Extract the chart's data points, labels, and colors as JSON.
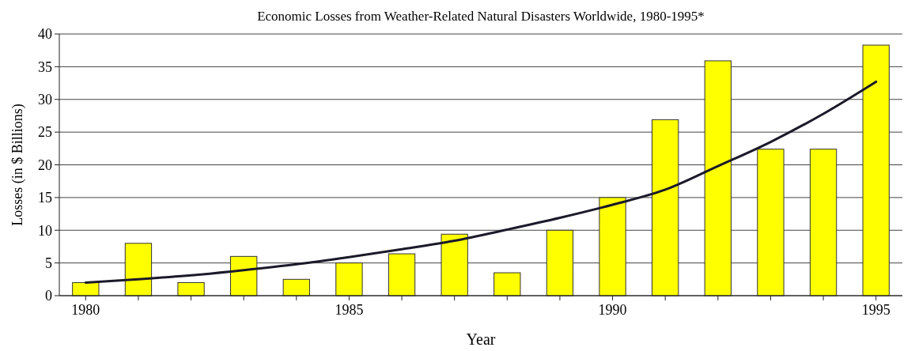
{
  "chart_data": {
    "type": "bar",
    "title": "Economic Losses from Weather-Related Natural Disasters Worldwide, 1980-1995*",
    "xlabel": "Year",
    "ylabel": "Losses (in $ Billions)",
    "x": [
      1980,
      1981,
      1982,
      1983,
      1984,
      1985,
      1986,
      1987,
      1988,
      1989,
      1990,
      1991,
      1992,
      1993,
      1994,
      1995
    ],
    "series": [
      {
        "color": "#ffff00",
        "values": [
          2,
          8,
          2,
          6,
          2.5,
          5,
          6.4,
          9.4,
          3.5,
          10,
          15,
          26.9,
          35.9,
          22.4,
          22.4,
          38.3
        ]
      },
      {
        "type": "line",
        "color": "#1a1a2a",
        "x": [
          1980,
          1981,
          1982,
          1983,
          1984,
          1985,
          1986,
          1987,
          1988,
          1989,
          1990,
          1991,
          1992,
          1993,
          1994,
          1995
        ],
        "values": [
          2,
          2.5,
          3.1,
          3.9,
          4.8,
          5.9,
          7.1,
          8.4,
          10.1,
          11.9,
          13.9,
          16.2,
          19.8,
          23.5,
          27.8,
          32.7
        ]
      }
    ],
    "xlim": [
      1979.5,
      1995.5
    ],
    "xticks": [
      1980,
      {
        "value": 1981,
        "label": null
      },
      {
        "value": 1982,
        "label": null
      },
      {
        "value": 1983,
        "label": null
      },
      {
        "value": 1984,
        "label": null
      },
      1985,
      {
        "value": 1986,
        "label": null
      },
      {
        "value": 1987,
        "label": null
      },
      {
        "value": 1988,
        "label": null
      },
      {
        "value": 1989,
        "label": null
      },
      1990,
      {
        "value": 1991,
        "label": null
      },
      {
        "value": 1992,
        "label": null
      },
      {
        "value": 1993,
        "label": null
      },
      {
        "value": 1994,
        "label": null
      },
      1995
    ],
    "ylim": [
      0,
      40
    ],
    "yticks": [
      0,
      5,
      10,
      15,
      20,
      25,
      30,
      35,
      40
    ],
    "grid": "y",
    "marker": "none",
    "line_style": "solid"
  }
}
